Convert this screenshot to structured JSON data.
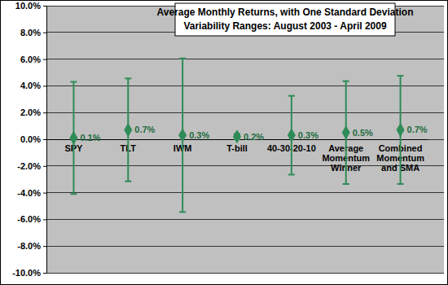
{
  "chart_data": {
    "type": "errorbar",
    "title": "Average Monthly Returns, with One Standard Deviation",
    "subtitle": "Variability Ranges:  August 2003 - April 2009",
    "categories": [
      "SPY",
      "TLT",
      "IWM",
      "T-bill",
      "40-30-20-10",
      "Average Momentum Winner",
      "Combined Momentum and SMA"
    ],
    "values": [
      0.1,
      0.7,
      0.3,
      0.2,
      0.3,
      0.5,
      0.7
    ],
    "value_labels": [
      "0.1%",
      "0.7%",
      "0.3%",
      "0.2%",
      "0.3%",
      "0.5%",
      "0.7%"
    ],
    "errors": [
      4.2,
      3.85,
      5.75,
      0.2,
      2.95,
      3.85,
      4.05
    ],
    "color": "#2e8b57",
    "marker": "diamond",
    "data_labels": true,
    "grid": true,
    "ylim": [
      -10,
      10
    ],
    "yticks": [
      {
        "value": -10,
        "label": "-10.0%"
      },
      {
        "value": -8,
        "label": "-8.0%"
      },
      {
        "value": -6,
        "label": "-6.0%"
      },
      {
        "value": -4,
        "label": "-4.0%"
      },
      {
        "value": -2,
        "label": "-2.0%"
      },
      {
        "value": 0,
        "label": "0.0%"
      },
      {
        "value": 2,
        "label": "2.0%"
      },
      {
        "value": 4,
        "label": "4.0%"
      },
      {
        "value": 6,
        "label": "6.0%"
      },
      {
        "value": 8,
        "label": "8.0%"
      },
      {
        "value": 10,
        "label": "10.0%"
      }
    ]
  }
}
